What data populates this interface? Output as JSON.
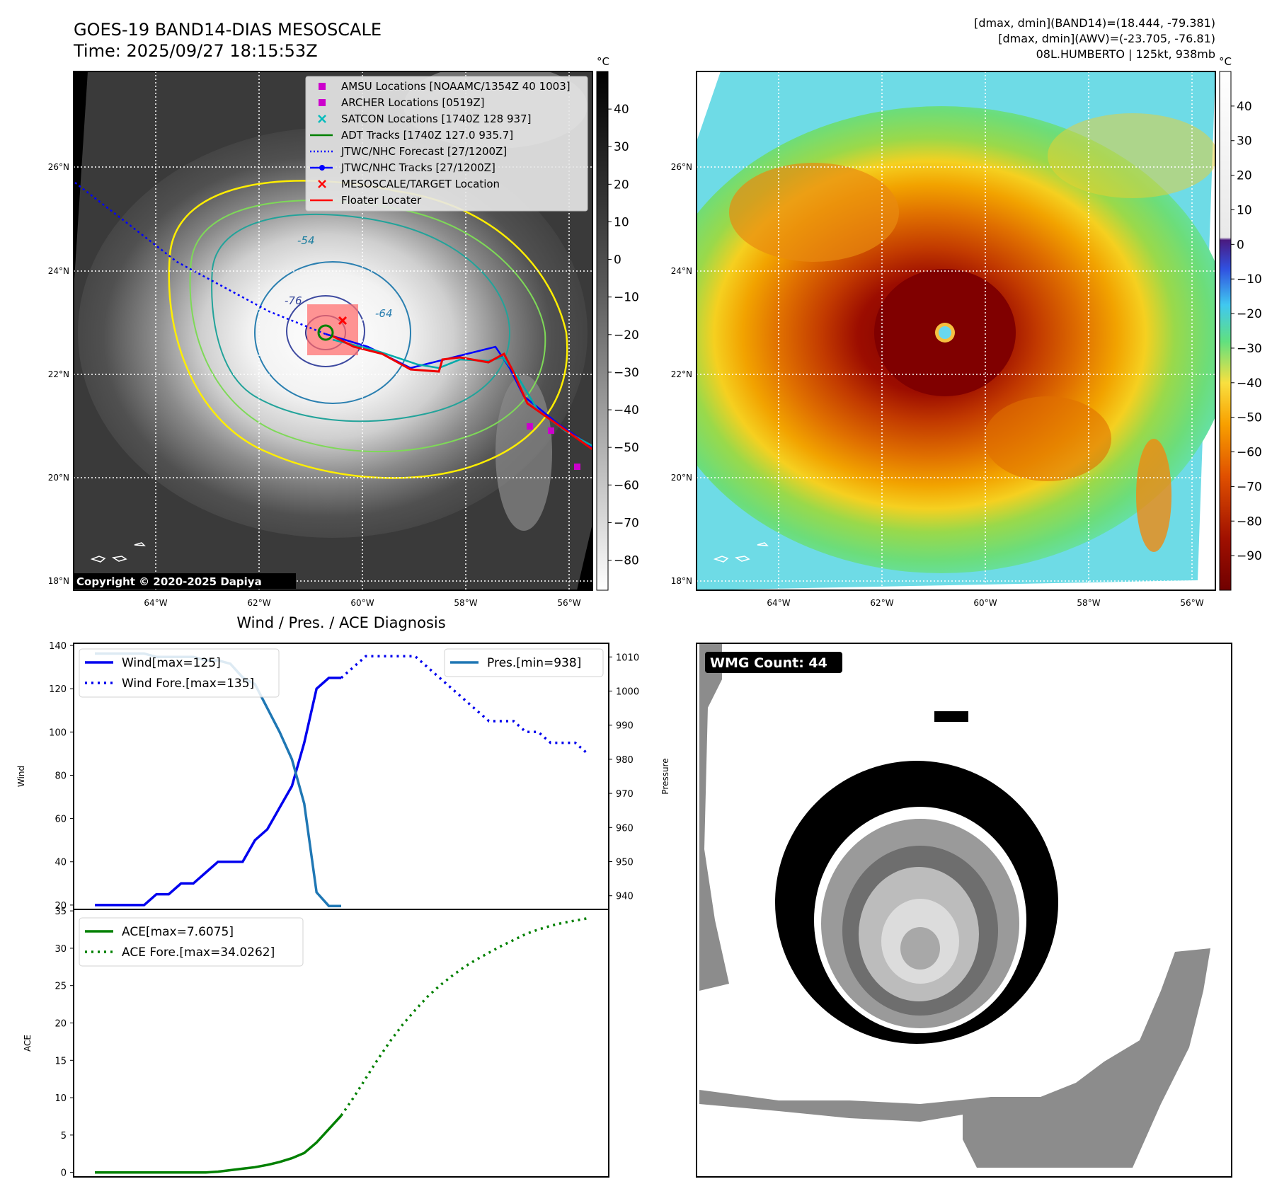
{
  "header": {
    "title": "GOES-19 BAND14-DIAS MESOSCALE",
    "time": "Time: 2025/09/27 18:15:53Z",
    "stats_line1": "[dmax, dmin](BAND14)=(18.444, -79.381)",
    "stats_line2": "[dmax, dmin](AWV)=(-23.705, -76.81)",
    "storm_line": "08L.HUMBERTO | 125kt, 938mb"
  },
  "colorbar_unit": "°C",
  "left_map": {
    "legend": [
      {
        "label": "AMSU Locations [NOAAMC/1354Z 40 1003]",
        "marker": "square",
        "color": "#cc00cc"
      },
      {
        "label": "ARCHER Locations [0519Z]",
        "marker": "square",
        "color": "#cc00cc"
      },
      {
        "label": "SATCON Locations [1740Z 128 937]",
        "marker": "x",
        "color": "#00bbbb"
      },
      {
        "label": "ADT Tracks [1740Z 127.0 935.7]",
        "marker": "line",
        "color": "#008000"
      },
      {
        "label": "JTWC/NHC Forecast [27/1200Z]",
        "marker": "dotted",
        "color": "#0000ff"
      },
      {
        "label": "JTWC/NHC Tracks [27/1200Z]",
        "marker": "line-dot",
        "color": "#0000ff"
      },
      {
        "label": "MESOSCALE/TARGET Location",
        "marker": "x",
        "color": "#ff0000"
      },
      {
        "label": "Floater Locater",
        "marker": "line",
        "color": "#ff0000"
      }
    ],
    "contour_labels": [
      "-54",
      "-76",
      "-64"
    ],
    "colorbar_ticks": [
      "40",
      "30",
      "20",
      "10",
      "0",
      "−10",
      "−20",
      "−30",
      "−40",
      "−50",
      "−60",
      "−70",
      "−80"
    ],
    "copyright": "Copyright © 2020-2025 Dapiya"
  },
  "right_map": {
    "colorbar_ticks": [
      "40",
      "30",
      "20",
      "10",
      "0",
      "−10",
      "−20",
      "−30",
      "−40",
      "−50",
      "−60",
      "−70",
      "−80",
      "−90"
    ]
  },
  "lat_ticks": [
    "26°N",
    "24°N",
    "22°N",
    "20°N",
    "18°N"
  ],
  "lon_ticks": [
    "64°W",
    "62°W",
    "60°W",
    "58°W",
    "56°W"
  ],
  "colors": {
    "wind": "#0000ee",
    "pressure": "#1f77b4",
    "ace": "#008000"
  },
  "wmg": {
    "label": "WMG Count: 44"
  },
  "chart_data": [
    {
      "type": "line",
      "title": "Wind / Pres. / ACE Diagnosis",
      "ylabel": "Wind",
      "y2label": "Pressure",
      "ylim": [
        18,
        141
      ],
      "y2lim": [
        936,
        1014
      ],
      "yticks": [
        20,
        40,
        60,
        80,
        100,
        120,
        140
      ],
      "y2ticks": [
        940,
        950,
        960,
        970,
        980,
        990,
        1000,
        1010
      ],
      "series": [
        {
          "name": "Wind[max=125]",
          "style": "solid",
          "axis": "left",
          "x": [
            0,
            1,
            2,
            3,
            4,
            5,
            6,
            7,
            8,
            9,
            10,
            11,
            12,
            13,
            14,
            15,
            16,
            17,
            18,
            19,
            20
          ],
          "y": [
            20,
            20,
            20,
            20,
            20,
            25,
            25,
            30,
            30,
            35,
            40,
            40,
            40,
            50,
            55,
            65,
            75,
            95,
            120,
            125,
            125
          ]
        },
        {
          "name": "Wind Fore.[max=135]",
          "style": "dotted",
          "axis": "left",
          "x": [
            20,
            21,
            22,
            23,
            24,
            25,
            26,
            27,
            28,
            29,
            30,
            31,
            32,
            33,
            34,
            35,
            36,
            37,
            38,
            39,
            40
          ],
          "y": [
            125,
            130,
            135,
            135,
            135,
            135,
            135,
            130,
            125,
            120,
            115,
            110,
            105,
            105,
            105,
            100,
            100,
            95,
            95,
            95,
            90
          ]
        },
        {
          "name": "Pres.[min=938]",
          "style": "solid",
          "axis": "right",
          "x": [
            0,
            1,
            2,
            3,
            4,
            5,
            6,
            7,
            8,
            9,
            10,
            11,
            12,
            13,
            14,
            15,
            16,
            17,
            18,
            19,
            20
          ],
          "y": [
            1011,
            1011,
            1011,
            1011,
            1011,
            1010,
            1010,
            1010,
            1010,
            1009,
            1009,
            1008,
            1004,
            1002,
            995,
            988,
            980,
            967,
            941,
            937,
            937
          ]
        }
      ]
    },
    {
      "type": "line",
      "ylabel": "ACE",
      "ylim": [
        -0.6,
        35.2
      ],
      "yticks": [
        0,
        5,
        10,
        15,
        20,
        25,
        30,
        35
      ],
      "series": [
        {
          "name": "ACE[max=7.6075]",
          "style": "solid",
          "x": [
            0,
            1,
            2,
            3,
            4,
            5,
            6,
            7,
            8,
            9,
            10,
            11,
            12,
            13,
            14,
            15,
            16,
            17,
            18,
            19,
            20
          ],
          "y": [
            0,
            0,
            0,
            0,
            0,
            0,
            0,
            0,
            0,
            0,
            0.1,
            0.3,
            0.5,
            0.7,
            1.0,
            1.4,
            1.9,
            2.6,
            4.0,
            5.8,
            7.6
          ]
        },
        {
          "name": "ACE Fore.[max=34.0262]",
          "style": "dotted",
          "x": [
            20,
            21,
            22,
            23,
            24,
            25,
            26,
            27,
            28,
            29,
            30,
            31,
            32,
            33,
            34,
            35,
            36,
            37,
            38,
            39,
            40
          ],
          "y": [
            7.6,
            10.0,
            12.6,
            15.2,
            17.6,
            19.8,
            21.7,
            23.5,
            25.0,
            26.3,
            27.5,
            28.5,
            29.4,
            30.3,
            31.1,
            31.9,
            32.5,
            33.0,
            33.4,
            33.7,
            34.0
          ]
        }
      ]
    }
  ]
}
